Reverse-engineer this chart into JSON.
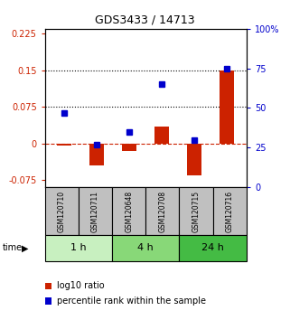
{
  "title": "GDS3433 / 14713",
  "samples": [
    "GSM120710",
    "GSM120711",
    "GSM120648",
    "GSM120708",
    "GSM120715",
    "GSM120716"
  ],
  "log10_ratio": [
    -0.005,
    -0.045,
    -0.015,
    0.035,
    -0.065,
    0.15
  ],
  "percentile_rank": [
    47,
    27,
    35,
    65,
    30,
    75
  ],
  "time_groups": [
    {
      "label": "1 h",
      "start": 0,
      "end": 2,
      "color": "#c8f0c0"
    },
    {
      "label": "4 h",
      "start": 2,
      "end": 4,
      "color": "#88d878"
    },
    {
      "label": "24 h",
      "start": 4,
      "end": 6,
      "color": "#44bb44"
    }
  ],
  "ylim_left": [
    -0.09,
    0.235
  ],
  "ylim_right": [
    0,
    100
  ],
  "yticks_left": [
    -0.075,
    0,
    0.075,
    0.15,
    0.225
  ],
  "yticks_right": [
    0,
    25,
    50,
    75,
    100
  ],
  "hlines": [
    0.075,
    0.15
  ],
  "bar_color": "#cc2200",
  "square_color": "#0000cc",
  "bar_width": 0.45,
  "background_color": "#ffffff",
  "gsm_box_color": "#c0c0c0",
  "title_fontsize": 9,
  "tick_fontsize": 7,
  "sample_fontsize": 5.5,
  "time_fontsize": 8,
  "legend_fontsize": 7
}
